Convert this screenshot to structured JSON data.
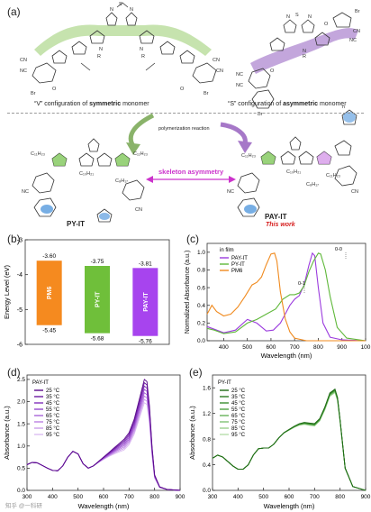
{
  "panel_a": {
    "label": "(a)",
    "caption_v_prefix": "“V” configuration of ",
    "caption_v_bold": "symmetric",
    "caption_v_suffix": " monomer",
    "caption_s_prefix": "“S” configuration of ",
    "caption_s_bold": "asymmetric",
    "caption_s_suffix": " monomer",
    "polymerization": "polymerization reaction",
    "skeleton": "skeleton asymmetry",
    "left_polymer": "PY-IT",
    "right_polymer": "PAY-IT",
    "this_work": "This work",
    "atoms": {
      "S": "S",
      "N": "N",
      "R": "R",
      "O": "O",
      "CN": "CN",
      "NC": "NC",
      "Br": "Br",
      "c11": "C₁₁H₂₃",
      "c10": "C₁₀H₂₁",
      "c8": "C₈H₁₇",
      "n": "n"
    },
    "colors": {
      "green_band": "#b8dc9a",
      "purple_band": "#b996d6",
      "magenta": "#cc33cc",
      "accent_red": "#d62020",
      "thiophene_blue": "#3d8bd9"
    }
  },
  "panel_b": {
    "label": "(b)",
    "chart_data": {
      "type": "bar",
      "ylabel": "Energy Level (eV)",
      "ylim": [
        -6.0,
        -3.0
      ],
      "yticks": [
        "-3",
        "-4",
        "-5",
        "-6"
      ],
      "bars": [
        {
          "name": "PM6",
          "lumo": -3.6,
          "homo": -5.45,
          "lumo_label": "-3.60",
          "homo_label": "-5.45",
          "color": "#f58a1f"
        },
        {
          "name": "PY-IT",
          "lumo": -3.75,
          "homo": -5.68,
          "lumo_label": "-3.75",
          "homo_label": "-5.68",
          "color": "#6fbf3a"
        },
        {
          "name": "PAY-IT",
          "lumo": -3.81,
          "homo": -5.76,
          "lumo_label": "-3.81",
          "homo_label": "-5.76",
          "color": "#a744ee"
        }
      ]
    }
  },
  "panel_c": {
    "label": "(c)",
    "chart_data": {
      "type": "line",
      "xlabel": "Wavelength (nm)",
      "ylabel": "Normalized Absorbance (a.u.)",
      "xlim": [
        330,
        1000
      ],
      "ylim": [
        0,
        1.1
      ],
      "xticks": [
        "400",
        "500",
        "600",
        "700",
        "800",
        "900",
        "100"
      ],
      "yticks": [
        "0.0",
        "0.2",
        "0.4",
        "0.6",
        "0.8",
        "1.0"
      ],
      "legend_title": "in film",
      "annotations": [
        "0-0",
        "0-1"
      ],
      "series": [
        {
          "name": "PAY-IT",
          "color": "#9b3bde",
          "x": [
            330,
            360,
            400,
            450,
            500,
            540,
            580,
            610,
            640,
            660,
            680,
            700,
            720,
            740,
            760,
            775,
            785,
            800,
            820,
            850,
            900,
            1000
          ],
          "y": [
            0.16,
            0.13,
            0.09,
            0.12,
            0.24,
            0.2,
            0.11,
            0.12,
            0.2,
            0.3,
            0.4,
            0.47,
            0.51,
            0.63,
            0.85,
            0.99,
            0.96,
            0.6,
            0.2,
            0.04,
            0.01,
            0.0
          ]
        },
        {
          "name": "PY-IT",
          "color": "#5fb83a",
          "x": [
            330,
            360,
            400,
            450,
            500,
            540,
            580,
            620,
            650,
            680,
            700,
            720,
            740,
            760,
            780,
            800,
            810,
            830,
            850,
            880,
            920,
            1000
          ],
          "y": [
            0.14,
            0.12,
            0.08,
            0.1,
            0.2,
            0.24,
            0.3,
            0.36,
            0.47,
            0.52,
            0.52,
            0.54,
            0.62,
            0.78,
            0.9,
            0.99,
            0.98,
            0.8,
            0.5,
            0.15,
            0.03,
            0.0
          ]
        },
        {
          "name": "PM6",
          "color": "#f08a1e",
          "x": [
            330,
            350,
            370,
            400,
            430,
            460,
            490,
            520,
            540,
            560,
            580,
            600,
            615,
            625,
            640,
            660,
            680,
            700,
            750,
            800,
            1000
          ],
          "y": [
            0.3,
            0.4,
            0.33,
            0.28,
            0.3,
            0.38,
            0.5,
            0.63,
            0.66,
            0.72,
            0.86,
            0.98,
            0.99,
            0.9,
            0.55,
            0.25,
            0.1,
            0.03,
            0.0,
            0.0,
            0.0
          ]
        }
      ]
    }
  },
  "panel_d": {
    "label": "(d)",
    "chart_data": {
      "type": "line",
      "title": "PAY-IT",
      "xlabel": "Wavelength (nm)",
      "ylabel": "Absorbance (a.u.)",
      "xlim": [
        300,
        900
      ],
      "ylim": [
        0.0,
        2.6
      ],
      "xticks": [
        "300",
        "400",
        "500",
        "600",
        "700",
        "800",
        "900"
      ],
      "yticks": [
        "0.0",
        "0.5",
        "1.0",
        "1.5",
        "2.0",
        "2.5"
      ],
      "x": [
        300,
        320,
        340,
        360,
        380,
        400,
        420,
        440,
        460,
        480,
        500,
        520,
        540,
        560,
        580,
        600,
        620,
        640,
        660,
        680,
        700,
        720,
        740,
        760,
        770,
        780,
        790,
        800,
        820,
        850,
        900
      ],
      "base": [
        0.58,
        0.63,
        0.62,
        0.56,
        0.5,
        0.45,
        0.44,
        0.55,
        0.75,
        0.88,
        0.82,
        0.6,
        0.5,
        0.55,
        0.65,
        0.75,
        0.85,
        0.95,
        1.05,
        1.15,
        1.3,
        1.6,
        2.05,
        2.5,
        2.45,
        1.9,
        1.0,
        0.35,
        0.08,
        0.02,
        0.0
      ],
      "series": [
        {
          "name": "25 °C",
          "peak_scale": 1.0,
          "color": "#5a0a8c"
        },
        {
          "name": "35 °C",
          "peak_scale": 0.97,
          "color": "#6d1aa3"
        },
        {
          "name": "45 °C",
          "peak_scale": 0.94,
          "color": "#8130bb"
        },
        {
          "name": "55 °C",
          "peak_scale": 0.91,
          "color": "#9548cc"
        },
        {
          "name": "65 °C",
          "peak_scale": 0.88,
          "color": "#a862d8"
        },
        {
          "name": "75 °C",
          "peak_scale": 0.85,
          "color": "#ba7fe2"
        },
        {
          "name": "85 °C",
          "peak_scale": 0.82,
          "color": "#cb9eea"
        },
        {
          "name": "95 °C",
          "peak_scale": 0.79,
          "color": "#dcbdf2"
        }
      ]
    }
  },
  "panel_e": {
    "label": "(e)",
    "chart_data": {
      "type": "line",
      "title": "PY-IT",
      "xlabel": "Wavelength (nm)",
      "ylabel": "Absorbance (a.u.)",
      "xlim": [
        300,
        900
      ],
      "ylim": [
        0.0,
        1.8
      ],
      "xticks": [
        "300",
        "400",
        "500",
        "600",
        "700",
        "800",
        "900"
      ],
      "yticks": [
        "0.0",
        "0.4",
        "0.8",
        "1.2",
        "1.6"
      ],
      "x": [
        300,
        320,
        340,
        360,
        380,
        400,
        420,
        440,
        460,
        480,
        500,
        520,
        540,
        560,
        580,
        600,
        620,
        640,
        660,
        680,
        700,
        720,
        740,
        760,
        780,
        790,
        800,
        820,
        850,
        900
      ],
      "base": [
        0.5,
        0.55,
        0.52,
        0.45,
        0.38,
        0.33,
        0.33,
        0.4,
        0.55,
        0.65,
        0.66,
        0.66,
        0.72,
        0.82,
        0.9,
        0.95,
        1.0,
        1.04,
        1.06,
        1.05,
        1.04,
        1.12,
        1.3,
        1.52,
        1.58,
        1.45,
        1.1,
        0.35,
        0.06,
        0.0
      ],
      "series": [
        {
          "name": "25 °C",
          "peak_scale": 1.0,
          "color": "#1e6a14"
        },
        {
          "name": "35 °C",
          "peak_scale": 0.995,
          "color": "#2c7d22"
        },
        {
          "name": "45 °C",
          "peak_scale": 0.99,
          "color": "#3b8f31"
        },
        {
          "name": "55 °C",
          "peak_scale": 0.985,
          "color": "#4fa243"
        },
        {
          "name": "65 °C",
          "peak_scale": 0.98,
          "color": "#65b359"
        },
        {
          "name": "75 °C",
          "peak_scale": 0.975,
          "color": "#7fc273"
        },
        {
          "name": "85 °C",
          "peak_scale": 0.97,
          "color": "#9bd08f"
        },
        {
          "name": "95 °C",
          "peak_scale": 0.965,
          "color": "#b6ddab"
        }
      ]
    }
  },
  "watermark": "知乎 @一科研"
}
